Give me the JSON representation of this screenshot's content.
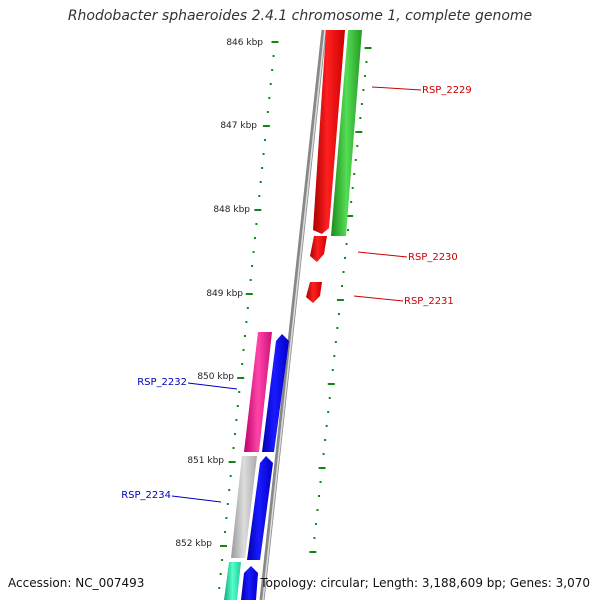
{
  "title": "Rhodobacter sphaeroides 2.4.1 chromosome 1, complete genome",
  "footer": {
    "accession": "Accession: NC_007493",
    "topology": "Topology: circular; Length: 3,188,609 bp; Genes: 3,070"
  },
  "ticks": [
    "846 kbp",
    "847 kbp",
    "848 kbp",
    "849 kbp",
    "850 kbp",
    "851 kbp",
    "852 kbp"
  ],
  "gene_labels": {
    "rsp_2229": "RSP_2229",
    "rsp_2230": "RSP_2230",
    "rsp_2231": "RSP_2231",
    "rsp_2232": "RSP_2232",
    "rsp_2234": "RSP_2234"
  },
  "colors": {
    "forward_label": "#cc0000",
    "reverse_label": "#0000bb",
    "tick": "#118811",
    "red": "#ff0000",
    "green": "#33cc33",
    "blue": "#0000ee",
    "magenta": "#ee1188",
    "gray": "#bbbbbb",
    "teal": "#22ddaa"
  }
}
